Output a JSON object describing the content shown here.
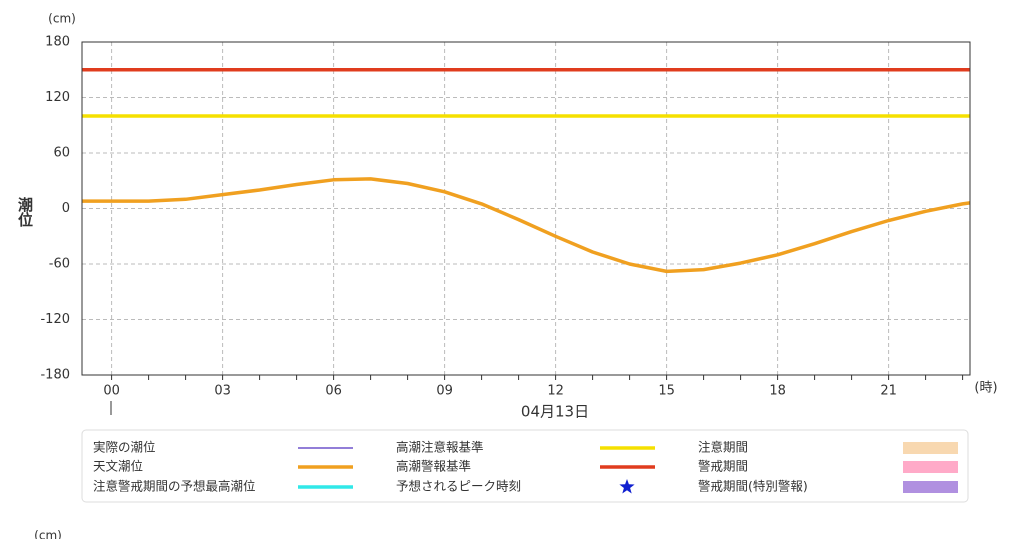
{
  "chart_data": {
    "type": "line",
    "y_unit": "(cm)",
    "y_label": "潮位",
    "x_unit": "(時)",
    "date_label": "04月13日",
    "xlim": [
      -0.8,
      23.2
    ],
    "ylim": [
      -180,
      180
    ],
    "yticks": [
      -180,
      -120,
      -60,
      0,
      60,
      120,
      180
    ],
    "xticks": [
      {
        "value": 0,
        "label": "00"
      },
      {
        "value": 3,
        "label": "03"
      },
      {
        "value": 6,
        "label": "06"
      },
      {
        "value": 9,
        "label": "09"
      },
      12,
      15,
      18,
      21
    ],
    "grid": true,
    "series": [
      {
        "name": "実際の潮位",
        "color": "#5030c0",
        "style": "line"
      },
      {
        "name": "天文潮位",
        "color": "#f0a020",
        "style": "thick-line",
        "x": [
          -0.8,
          0,
          1,
          2,
          3,
          4,
          5,
          6,
          7,
          8,
          9,
          10,
          11,
          12,
          13,
          14,
          15,
          16,
          17,
          18,
          19,
          20,
          21,
          22,
          23,
          23.2
        ],
        "values": [
          8,
          8,
          8,
          10,
          15,
          20,
          26,
          31,
          32,
          27,
          18,
          5,
          -12,
          -30,
          -47,
          -60,
          -68,
          -66,
          -59,
          -50,
          -38,
          -25,
          -13,
          -3,
          5,
          6
        ]
      },
      {
        "name": "注意警戒期間の予想最高潮位",
        "color": "#30e8e8",
        "style": "thick-line"
      },
      {
        "name": "高潮注意報基準",
        "color": "#f5e000",
        "style": "thick-line",
        "value": 100
      },
      {
        "name": "高潮警報基準",
        "color": "#e03c1e",
        "style": "thick-line",
        "value": 150
      },
      {
        "name": "予想されるピーク時刻",
        "color": "#1020d0",
        "style": "star"
      },
      {
        "name": "注意期間",
        "color": "#f8d8b0",
        "style": "box"
      },
      {
        "name": "警戒期間",
        "color": "#ffaac8",
        "style": "box"
      },
      {
        "name": "警戒期間(特別警報)",
        "color": "#b090e0",
        "style": "box"
      }
    ]
  },
  "next_chart": {
    "y_unit": "(cm)"
  }
}
